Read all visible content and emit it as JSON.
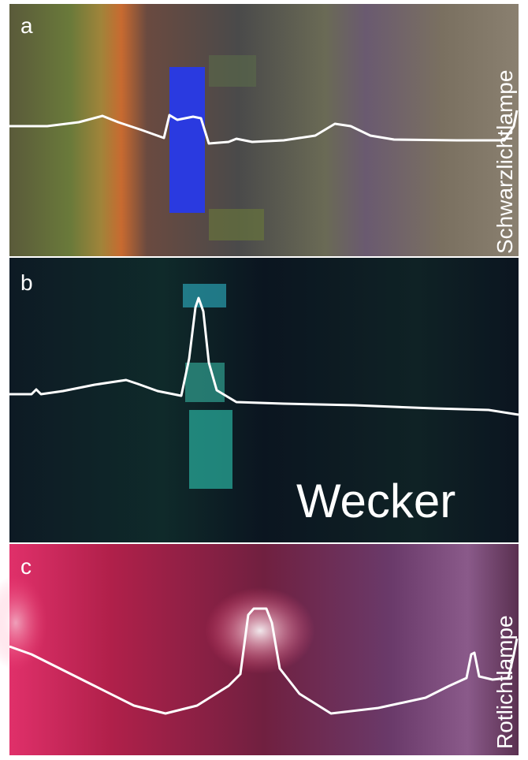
{
  "panels": [
    {
      "label": "a",
      "caption": "Schwarzlichtlampe"
    },
    {
      "label": "b",
      "caption": "Wecker"
    },
    {
      "label": "c",
      "caption": "Rotlichtlampe"
    }
  ]
}
